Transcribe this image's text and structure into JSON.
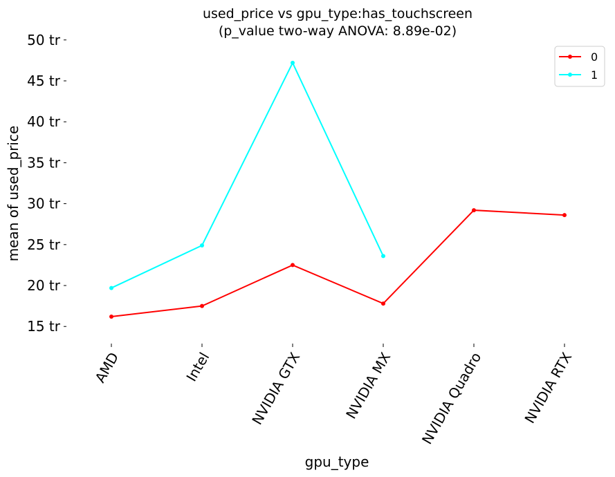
{
  "chart_data": {
    "type": "line",
    "title": "used_price vs gpu_type:has_touchscreen",
    "subtitle": "(p_value two-way ANOVA: 8.89e-02)",
    "xlabel": "gpu_type",
    "ylabel": "mean of used_price",
    "categories": [
      "AMD",
      "Intel",
      "NVIDIA GTX",
      "NVIDIA MX",
      "NVIDIA Quadro",
      "NVIDIA RTX"
    ],
    "yticks": [
      15,
      20,
      25,
      30,
      35,
      40,
      45,
      50
    ],
    "ytick_labels": [
      "15 tr",
      "20 tr",
      "25 tr",
      "30 tr",
      "35 tr",
      "40 tr",
      "45 tr",
      "50 tr"
    ],
    "y_unit": "tr",
    "ylim": [
      13.5,
      51.5
    ],
    "grid": false,
    "legend_position": "top-right",
    "series": [
      {
        "name": "0",
        "color": "#ff0000",
        "values": [
          16.2,
          17.5,
          22.5,
          17.8,
          29.2,
          28.6
        ]
      },
      {
        "name": "1",
        "color": "#00ffff",
        "values": [
          19.7,
          24.9,
          47.2,
          23.6,
          null,
          null
        ]
      }
    ]
  }
}
